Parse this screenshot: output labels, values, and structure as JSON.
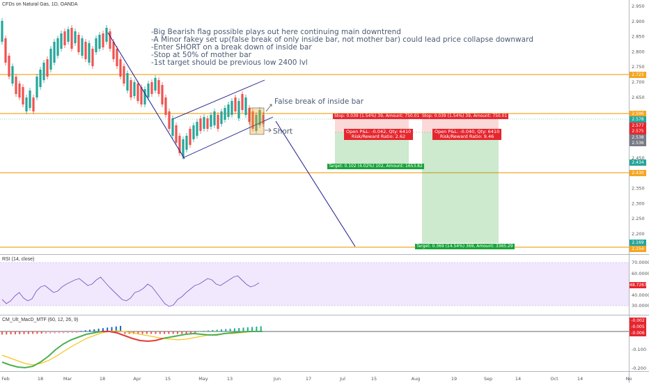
{
  "header": {
    "title": "CFDs on Natural Gas, 1D, OANDA",
    "rsi_label": "RSI (14, close)",
    "macd_label": "CM_Ult_MacD_MTF (60, 12, 26, 9)"
  },
  "annotations": {
    "lines": [
      "-Big Bearish flag possible plays out here continuing main downtrend",
      "-A Minor fakey set up(false break of only inside bar, not mother bar) could lead price collapse downward",
      "-Enter SHORT on a break down of inside bar",
      "-Stop at 50% of mother bar",
      "-1st target should be previous low 2400 lvl"
    ],
    "false_break": "False break of inside bar",
    "short": "Short"
  },
  "positions": [
    {
      "stop": "Stop: 0.039 (1.54%) 39, Amount: 750.01",
      "pnl": "Open P&L: -0.042, Qty: 6410",
      "rr": "Risk/Reward Ratio: 2.62",
      "target": "Target: 0.102 (4.02%) 102, Amount: 1653.82"
    },
    {
      "stop": "Stop: 0.039 (1.54%) 39, Amount: 750.01",
      "pnl": "Open P&L: -0.040, Qty: 6410",
      "rr": "Risk/Reward Ratio: 9.46",
      "target": "Target: 0.369 (14.54%) 369, Amount: 3365.29"
    }
  ],
  "price_axis": {
    "ticks": [
      "2.950",
      "2.900",
      "2.850",
      "2.800",
      "2.750",
      "2.700",
      "2.650",
      "2.600",
      "2.550",
      "2.500",
      "2.450",
      "2.400",
      "2.350",
      "2.300",
      "2.250",
      "2.200",
      "2.150"
    ],
    "tags": [
      {
        "label": "2.723",
        "color": "#f5a623"
      },
      {
        "label": "2.596",
        "color": "#f5a623"
      },
      {
        "label": "2.578",
        "color": "#26a69a"
      },
      {
        "label": "2.577",
        "color": "#e6262e"
      },
      {
        "label": "2.575",
        "color": "#e6262e"
      },
      {
        "label": "2.538",
        "color": "#787b86"
      },
      {
        "label": "2.536",
        "color": "#787b86"
      },
      {
        "label": "2.434",
        "color": "#26a69a"
      },
      {
        "label": "2.430",
        "color": "#f5a623"
      },
      {
        "label": "2.169",
        "color": "#26a69a"
      },
      {
        "label": "2.154",
        "color": "#f5a623"
      }
    ]
  },
  "rsi_axis": {
    "ticks": [
      "70.0000",
      "60.0000",
      "40.0000",
      "30.0000"
    ],
    "value": "48.7267"
  },
  "macd_axis": {
    "ticks": [
      "-0.100",
      "-0.200"
    ],
    "tags": [
      "-0.002",
      "-0.005",
      "-0.006"
    ]
  },
  "time_axis": [
    "Feb",
    "18",
    "Mar",
    "18",
    "Apr",
    "15",
    "May",
    "13",
    "Jun",
    "17",
    "Jul",
    "15",
    "Aug",
    "19",
    "Sep",
    "14",
    "Oct",
    "14",
    "No"
  ],
  "colors": {
    "up": "#26a69a",
    "down": "#ef5350",
    "hline": "#f5a623",
    "trend": "#1a1a8c",
    "rsi_band": "#f1e8fd"
  }
}
